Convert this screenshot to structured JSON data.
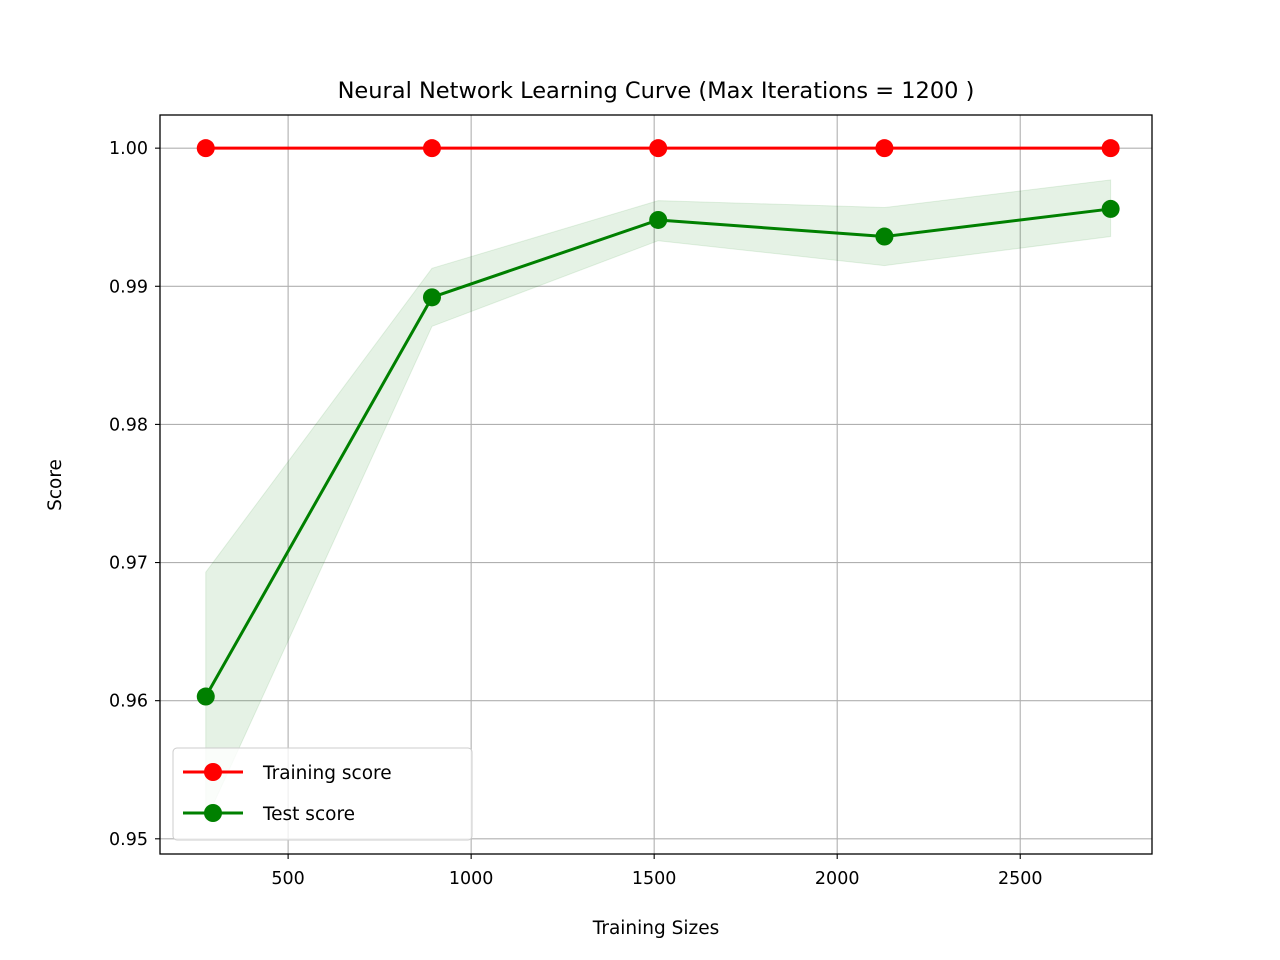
{
  "chart_data": {
    "type": "line",
    "title": "Neural Network Learning Curve (Max Iterations = 1200 )",
    "xlabel": "Training Sizes",
    "ylabel": "Score",
    "x": [
      275,
      893,
      1511,
      2129,
      2747
    ],
    "xlim": [
      150,
      2860
    ],
    "ylim": [
      0.9489,
      1.0024
    ],
    "xticks": [
      500,
      1000,
      1500,
      2000,
      2500
    ],
    "xtick_labels": [
      "500",
      "1000",
      "1500",
      "2000",
      "2500"
    ],
    "yticks": [
      0.95,
      0.96,
      0.97,
      0.98,
      0.99,
      1.0
    ],
    "ytick_labels": [
      "0.95",
      "0.96",
      "0.97",
      "0.98",
      "0.99",
      "1.00"
    ],
    "grid": true,
    "legend_position": "lower-left",
    "series": [
      {
        "name": "Training score",
        "color": "#ff0000",
        "marker": "circle",
        "values": [
          1.0,
          1.0,
          1.0,
          1.0,
          1.0
        ]
      },
      {
        "name": "Test score",
        "color": "#008000",
        "marker": "circle",
        "values": [
          0.9603,
          0.9892,
          0.9948,
          0.9936,
          0.9956
        ],
        "band_lower": [
          0.9513,
          0.9871,
          0.9933,
          0.9915,
          0.9936
        ],
        "band_upper": [
          0.9693,
          0.9913,
          0.9962,
          0.9957,
          0.9977
        ],
        "band_color": "#008000"
      }
    ]
  }
}
